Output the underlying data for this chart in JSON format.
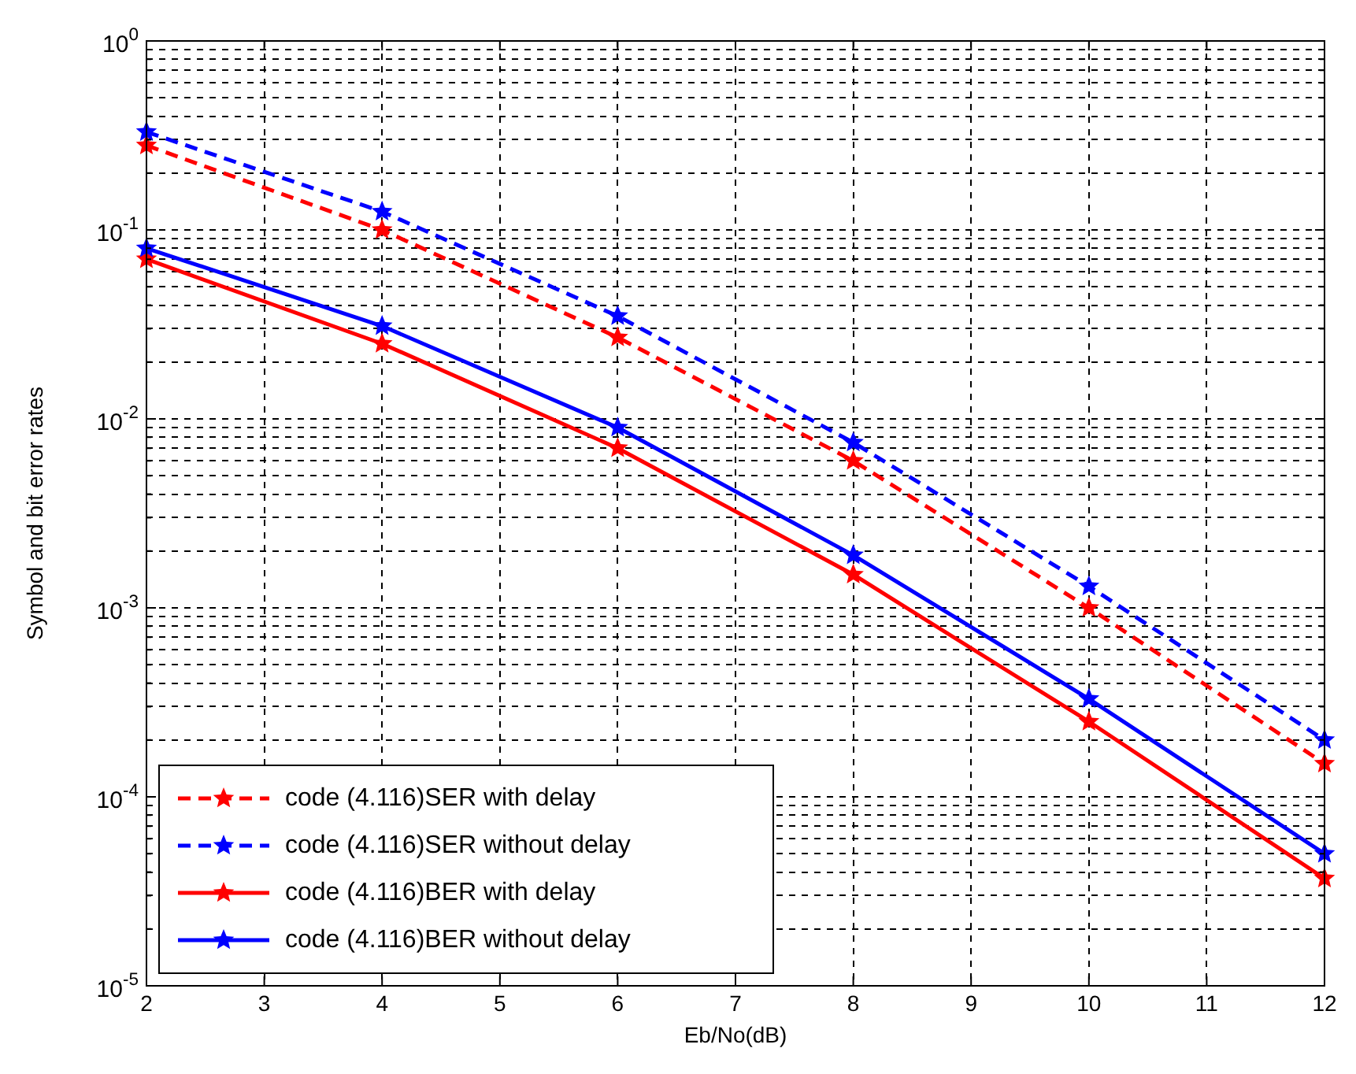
{
  "chart_data": {
    "type": "line",
    "xlabel": "Eb/No(dB)",
    "ylabel": "Symbol and bit error rates",
    "x": [
      2,
      4,
      6,
      8,
      10,
      12
    ],
    "series": [
      {
        "name": "code (4.116)SER with delay",
        "color": "#ff0000",
        "line_style": "dashed",
        "marker": "star",
        "values": [
          0.28,
          0.1,
          0.027,
          0.006,
          0.001,
          0.00015
        ]
      },
      {
        "name": "code (4.116)SER without delay",
        "color": "#0000ff",
        "line_style": "dashed",
        "marker": "star",
        "values": [
          0.33,
          0.125,
          0.035,
          0.0075,
          0.0013,
          0.0002
        ]
      },
      {
        "name": "code (4.116)BER with delay",
        "color": "#ff0000",
        "line_style": "solid",
        "marker": "star",
        "values": [
          0.07,
          0.025,
          0.007,
          0.0015,
          0.00025,
          3.7e-05
        ]
      },
      {
        "name": "code (4.116)BER without delay",
        "color": "#0000ff",
        "line_style": "solid",
        "marker": "star",
        "values": [
          0.08,
          0.031,
          0.009,
          0.0019,
          0.00033,
          5e-05
        ]
      }
    ],
    "log": "y",
    "xlim": [
      2,
      12
    ],
    "xticks": [
      2,
      3,
      4,
      5,
      6,
      7,
      8,
      9,
      10,
      11,
      12
    ],
    "ylim": [
      1e-05,
      1
    ],
    "yticks": [
      {
        "value": 1e-05,
        "label": "10$^{-5}$"
      },
      {
        "value": 2e-05,
        "label": null
      },
      {
        "value": 3e-05,
        "label": null
      },
      {
        "value": 4e-05,
        "label": null
      },
      {
        "value": 5e-05,
        "label": null
      },
      {
        "value": 6e-05,
        "label": null
      },
      {
        "value": 7e-05,
        "label": null
      },
      {
        "value": 8e-05,
        "label": null
      },
      {
        "value": 9e-05,
        "label": null
      },
      {
        "value": 0.0001,
        "label": "10$^{-4}$"
      },
      {
        "value": 0.0002,
        "label": null
      },
      {
        "value": 0.0003,
        "label": null
      },
      {
        "value": 0.0004,
        "label": null
      },
      {
        "value": 0.0005,
        "label": null
      },
      {
        "value": 0.0006,
        "label": null
      },
      {
        "value": 0.0007,
        "label": null
      },
      {
        "value": 0.0008,
        "label": null
      },
      {
        "value": 0.0009,
        "label": null
      },
      {
        "value": 0.001,
        "label": "10$^{-3}$"
      },
      {
        "value": 0.002,
        "label": null
      },
      {
        "value": 0.003,
        "label": null
      },
      {
        "value": 0.004,
        "label": null
      },
      {
        "value": 0.005,
        "label": null
      },
      {
        "value": 0.006,
        "label": null
      },
      {
        "value": 0.007,
        "label": null
      },
      {
        "value": 0.008,
        "label": null
      },
      {
        "value": 0.009,
        "label": null
      },
      {
        "value": 0.01,
        "label": "10$^{-2}$"
      },
      {
        "value": 0.02,
        "label": null
      },
      {
        "value": 0.03,
        "label": null
      },
      {
        "value": 0.04,
        "label": null
      },
      {
        "value": 0.05,
        "label": null
      },
      {
        "value": 0.06,
        "label": null
      },
      {
        "value": 0.07,
        "label": null
      },
      {
        "value": 0.08,
        "label": null
      },
      {
        "value": 0.09,
        "label": null
      },
      {
        "value": 0.1,
        "label": "10$^{-1}$"
      },
      {
        "value": 0.2,
        "label": null
      },
      {
        "value": 0.3,
        "label": null
      },
      {
        "value": 0.4,
        "label": null
      },
      {
        "value": 0.5,
        "label": null
      },
      {
        "value": 0.6,
        "label": null
      },
      {
        "value": 0.7,
        "label": null
      },
      {
        "value": 0.8,
        "label": null
      },
      {
        "value": 0.9,
        "label": null
      },
      {
        "value": 1,
        "label": "10$^{0}$"
      }
    ],
    "grid": true,
    "legend": "bottom left"
  }
}
